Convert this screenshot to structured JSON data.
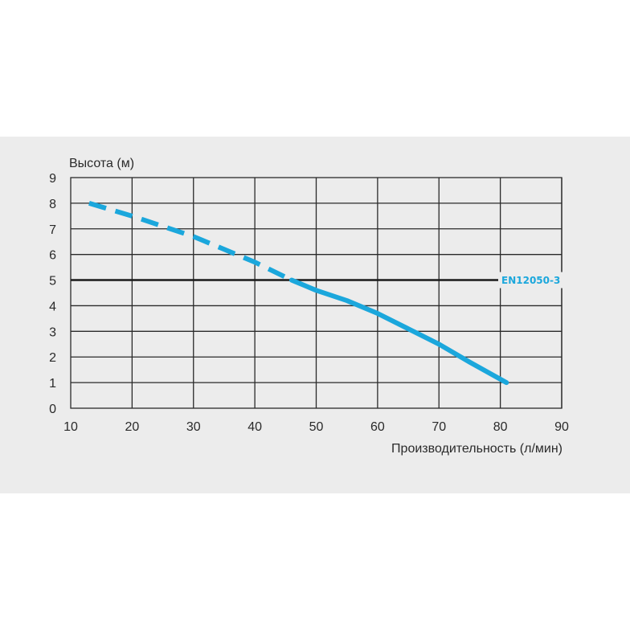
{
  "chart_data": {
    "type": "line",
    "xlabel": "Производительность (л/мин)",
    "ylabel": "Высота (м)",
    "xlim": [
      10,
      90
    ],
    "ylim": [
      0,
      9
    ],
    "xticks": [
      10,
      20,
      30,
      40,
      50,
      60,
      70,
      80,
      90
    ],
    "yticks": [
      0,
      1,
      2,
      3,
      4,
      5,
      6,
      7,
      8,
      9
    ],
    "grid": true,
    "reference_line": {
      "y": 5,
      "label": "EN12050-3"
    },
    "series": [
      {
        "color": "#1ba7dc",
        "dashed_segment": {
          "x": [
            13,
            20,
            25,
            30,
            35,
            40,
            46
          ],
          "y": [
            8.0,
            7.5,
            7.1,
            6.7,
            6.2,
            5.7,
            5.0
          ]
        },
        "solid_segment": {
          "x": [
            46,
            50,
            55,
            60,
            65,
            70,
            75,
            81
          ],
          "y": [
            5.0,
            4.6,
            4.2,
            3.7,
            3.1,
            2.5,
            1.8,
            1.0
          ]
        }
      }
    ]
  },
  "colors": {
    "background": "#ececec",
    "grid": "#2a2a2a",
    "curve": "#1ba7dc",
    "reference_line": "#1a1a1a"
  }
}
